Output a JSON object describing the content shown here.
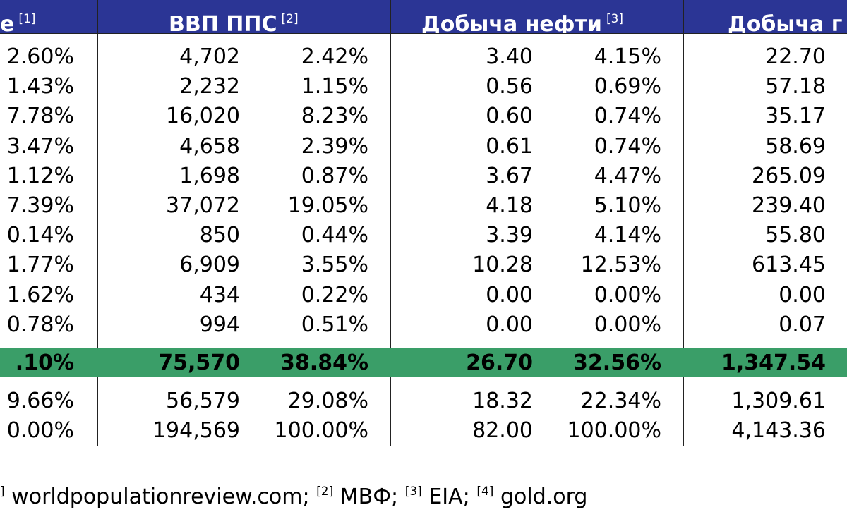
{
  "headers": [
    {
      "label": "е",
      "ref": "[1]"
    },
    {
      "label": "ВВП ППС",
      "ref": "[2]"
    },
    {
      "label": "Добыча нефти",
      "ref": "[3]"
    },
    {
      "label": "Добыча г",
      "ref": ""
    }
  ],
  "rows": [
    [
      "2.60%",
      "4,702",
      "2.42%",
      "3.40",
      "4.15%",
      "22.70"
    ],
    [
      "1.43%",
      "2,232",
      "1.15%",
      "0.56",
      "0.69%",
      "57.18"
    ],
    [
      "7.78%",
      "16,020",
      "8.23%",
      "0.60",
      "0.74%",
      "35.17"
    ],
    [
      "3.47%",
      "4,658",
      "2.39%",
      "0.61",
      "0.74%",
      "58.69"
    ],
    [
      "1.12%",
      "1,698",
      "0.87%",
      "3.67",
      "4.47%",
      "265.09"
    ],
    [
      "7.39%",
      "37,072",
      "19.05%",
      "4.18",
      "5.10%",
      "239.40"
    ],
    [
      "0.14%",
      "850",
      "0.44%",
      "3.39",
      "4.14%",
      "55.80"
    ],
    [
      "1.77%",
      "6,909",
      "3.55%",
      "10.28",
      "12.53%",
      "613.45"
    ],
    [
      "1.62%",
      "434",
      "0.22%",
      "0.00",
      "0.00%",
      "0.00"
    ],
    [
      "0.78%",
      "994",
      "0.51%",
      "0.00",
      "0.00%",
      "0.07"
    ]
  ],
  "total_row": [
    ".10%",
    "75,570",
    "38.84%",
    "26.70",
    "32.56%",
    "1,347.54"
  ],
  "bottom_rows": [
    [
      "9.66%",
      "56,579",
      "29.08%",
      "18.32",
      "22.34%",
      "1,309.61"
    ],
    [
      "0.00%",
      "194,569",
      "100.00%",
      "82.00",
      "100.00%",
      "4,143.36"
    ]
  ],
  "footnote": {
    "refs": [
      "]",
      "[2]",
      "[3]",
      "[4]"
    ],
    "texts": [
      " worldpopulationreview.com; ",
      " МВФ; ",
      " EIA; ",
      " gold.org"
    ]
  },
  "colors": {
    "header_bg": "#2b3595",
    "total_bg": "#3a9e68"
  }
}
